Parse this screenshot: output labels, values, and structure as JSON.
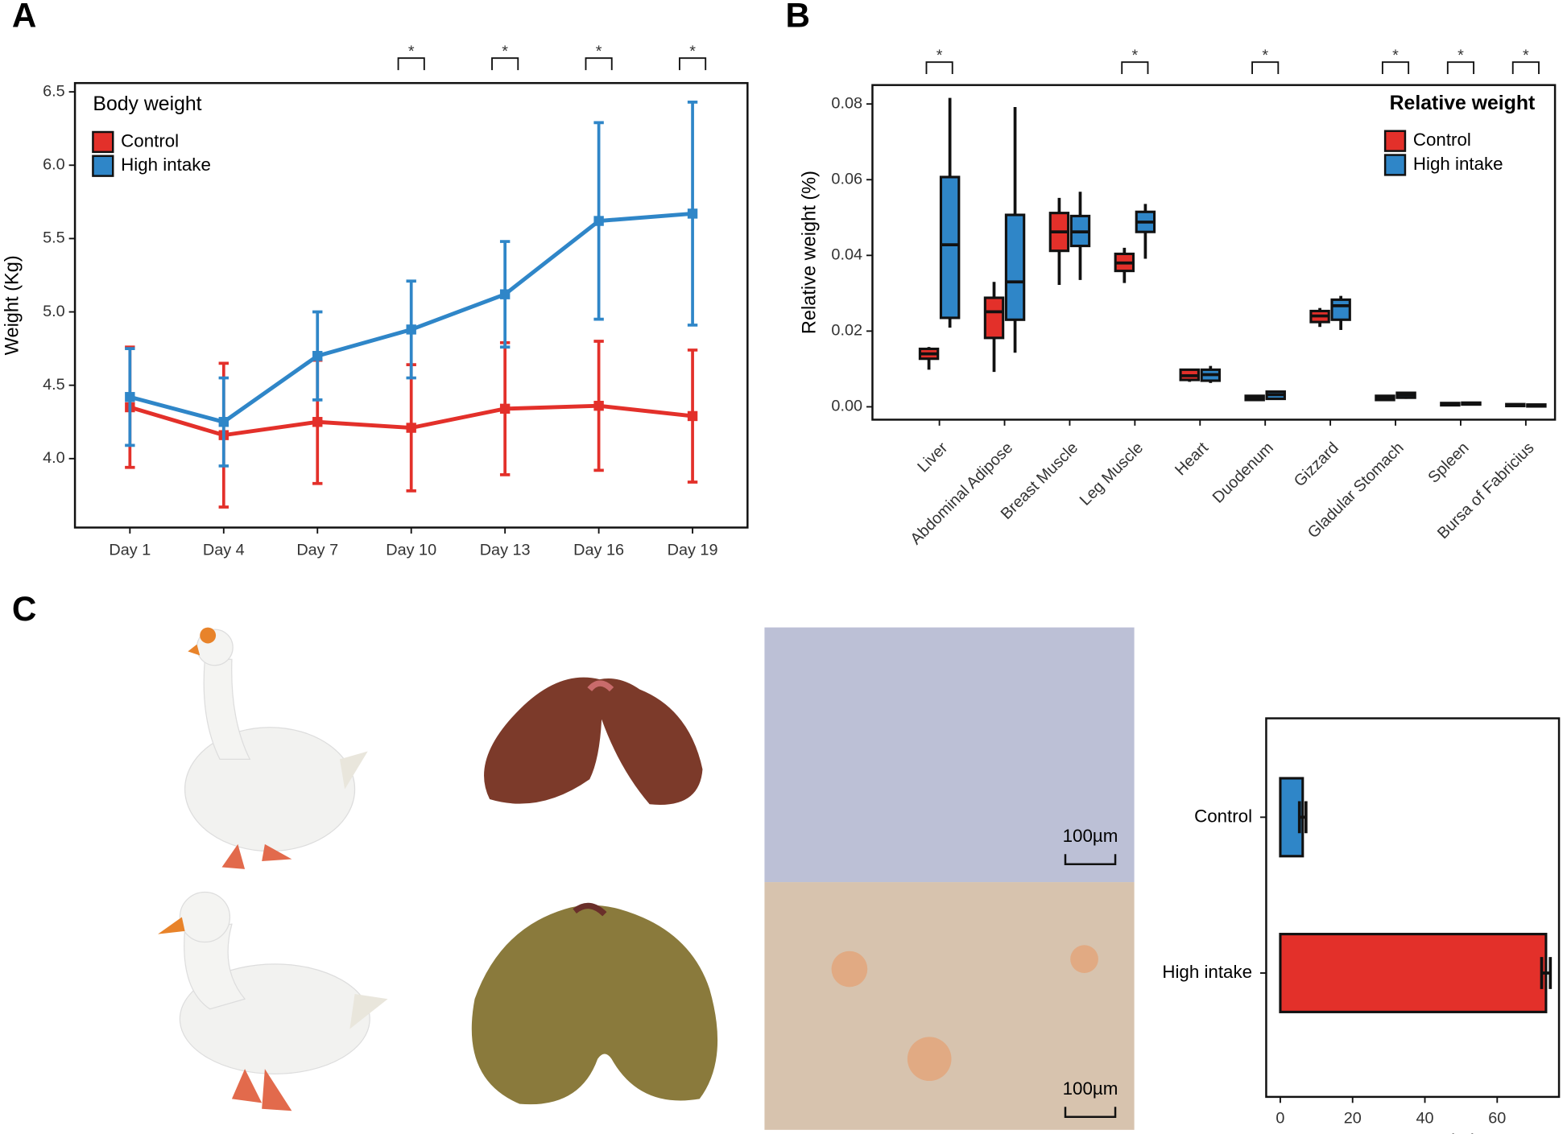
{
  "panel_labels": [
    "A",
    "B",
    "C"
  ],
  "micrographs": [
    {
      "scale_label": "100µm"
    },
    {
      "scale_label": "100µm"
    }
  ],
  "chart_data": [
    {
      "type": "line",
      "legend_title": "Body weight",
      "ylabel": "Weight (Kg)",
      "categories": [
        "Day 1",
        "Day 4",
        "Day 7",
        "Day 10",
        "Day 13",
        "Day 16",
        "Day 19"
      ],
      "series": [
        {
          "name": "Control",
          "color": "#e3302a",
          "values": [
            4.35,
            4.16,
            4.25,
            4.21,
            4.34,
            4.36,
            4.29
          ],
          "errors": [
            0.41,
            0.49,
            0.42,
            0.43,
            0.45,
            0.44,
            0.45
          ]
        },
        {
          "name": "High intake",
          "color": "#2f86c8",
          "values": [
            4.42,
            4.25,
            4.7,
            4.88,
            5.12,
            5.62,
            5.67
          ],
          "errors": [
            0.33,
            0.3,
            0.3,
            0.33,
            0.36,
            0.67,
            0.76
          ]
        }
      ],
      "significant": [
        false,
        false,
        false,
        true,
        true,
        true,
        true
      ],
      "significance_label": "*",
      "ylim": [
        3.53,
        6.56
      ],
      "yticks": [
        {
          "value": 4,
          "label": "4.0"
        },
        4.5,
        {
          "value": 5,
          "label": "5.0"
        },
        5.5,
        {
          "value": 6,
          "label": "6.0"
        },
        6.5
      ],
      "legend": "top-left"
    },
    {
      "type": "box",
      "legend_title": "Relative weight",
      "ylabel": "Relative weight (%)",
      "categories": [
        "Liver",
        "Abdominal Adipose",
        "Breast Muscle",
        "Leg Muscle",
        "Heart",
        "Duodenum",
        "Gizzard",
        "Gladular Stomach",
        "Spleen",
        "Bursa of Fabricius"
      ],
      "series": [
        {
          "name": "Control",
          "color": "#e3302a",
          "min": [
            0.0098,
            0.0092,
            0.0322,
            0.0327,
            0.0066,
            0.0016,
            0.0211,
            0.0016,
            0.0002,
            0.0001
          ],
          "q1": [
            0.0127,
            0.0182,
            0.0412,
            0.0359,
            0.0071,
            0.0018,
            0.0224,
            0.0018,
            0.0004,
            0.0002
          ],
          "median": [
            0.014,
            0.0251,
            0.0462,
            0.038,
            0.0082,
            0.0024,
            0.024,
            0.0023,
            0.0006,
            0.0005
          ],
          "q3": [
            0.0153,
            0.0288,
            0.0512,
            0.0404,
            0.0098,
            0.0029,
            0.0253,
            0.0029,
            0.001,
            0.0007
          ],
          "max": [
            0.0158,
            0.033,
            0.0552,
            0.042,
            0.0098,
            0.0029,
            0.0261,
            0.003,
            0.0011,
            0.0008
          ]
        },
        {
          "name": "High intake",
          "color": "#2f86c8",
          "min": [
            0.0209,
            0.0143,
            0.0335,
            0.0391,
            0.0063,
            0.0019,
            0.0203,
            0.0021,
            0.0004,
            0
          ],
          "q1": [
            0.0235,
            0.023,
            0.0425,
            0.0462,
            0.0069,
            0.0021,
            0.023,
            0.0024,
            0.0006,
            0.0001
          ],
          "median": [
            0.0428,
            0.033,
            0.0462,
            0.0488,
            0.0085,
            0.0032,
            0.0267,
            0.0031,
            0.0008,
            0.0004
          ],
          "q3": [
            0.0607,
            0.0507,
            0.0504,
            0.0515,
            0.0098,
            0.004,
            0.0283,
            0.0037,
            0.0011,
            0.0006
          ],
          "max": [
            0.0816,
            0.0792,
            0.0568,
            0.0536,
            0.0108,
            0.0042,
            0.0293,
            0.004,
            0.0013,
            0.0007
          ]
        }
      ],
      "significant": [
        true,
        false,
        false,
        true,
        false,
        true,
        false,
        true,
        true,
        true
      ],
      "significance_label": "*",
      "ylim": [
        -0.0034,
        0.085
      ],
      "yticks": [
        {
          "value": 0,
          "label": "0.00"
        },
        0.02,
        0.04,
        0.06,
        0.08
      ],
      "legend": "top-right"
    },
    {
      "type": "hbar",
      "xlabel": "Fat content (%)",
      "categories": [
        "Control",
        "High intake"
      ],
      "values": [
        6.2,
        73.5
      ],
      "errors": [
        0.9,
        1.2
      ],
      "colors": [
        "#2f86c8",
        "#e3302a"
      ],
      "xlim": [
        -3.9,
        77.1
      ],
      "xticks": [
        0,
        20,
        40,
        60
      ]
    }
  ]
}
